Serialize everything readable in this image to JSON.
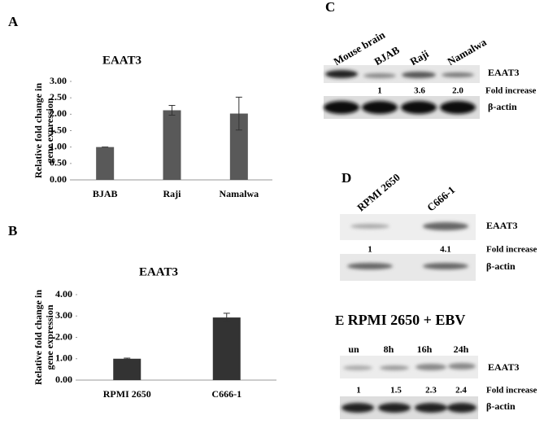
{
  "chart_data": [
    {
      "type": "bar",
      "panel": "A",
      "title": "EAAT3",
      "ylabel": [
        "Relative fold change in",
        "gene expression"
      ],
      "categories": [
        "BJAB",
        "Raji",
        "Namalwa"
      ],
      "values": [
        1.0,
        2.12,
        2.02
      ],
      "errors": [
        0.0,
        0.15,
        0.5
      ],
      "color": "#595959",
      "ylim": [
        0,
        3
      ],
      "yticks": [
        {
          "value": 0,
          "label": "0.00"
        },
        {
          "value": 0.5,
          "label": "0.50"
        },
        {
          "value": 1,
          "label": "1.00"
        },
        {
          "value": 1.5,
          "label": "1.50"
        },
        {
          "value": 2,
          "label": "2.00"
        },
        {
          "value": 2.5,
          "label": "2.50"
        },
        {
          "value": 3,
          "label": "3.00"
        }
      ]
    },
    {
      "type": "bar",
      "panel": "B",
      "title": "EAAT3",
      "ylabel": [
        "Relative fold change in",
        "gene expression"
      ],
      "categories": [
        "RPMI 2650",
        "C666-1"
      ],
      "values": [
        1.0,
        2.93
      ],
      "errors": [
        0.03,
        0.2
      ],
      "color": "#333333",
      "ylim": [
        0,
        4
      ],
      "yticks": [
        {
          "value": 0,
          "label": "0.00"
        },
        {
          "value": 1,
          "label": "1.00"
        },
        {
          "value": 2,
          "label": "2.00"
        },
        {
          "value": 3,
          "label": "3.00"
        },
        {
          "value": 4,
          "label": "4.00"
        }
      ]
    }
  ],
  "blots": {
    "C": {
      "panel": "C",
      "lanes": [
        "Mouse brain",
        "BJAB",
        "Raji",
        "Namalwa"
      ],
      "target": "EAAT3",
      "fold_label": "Fold increase",
      "fold": [
        "1",
        "3.6",
        "2.0"
      ],
      "control": "β-actin"
    },
    "D": {
      "panel": "D",
      "lanes": [
        "RPMI 2650",
        "C666-1"
      ],
      "target": "EAAT3",
      "fold_label": "Fold increase",
      "fold": [
        "1",
        "4.1"
      ],
      "control": "β-actin"
    },
    "E": {
      "panel": "E",
      "title": "RPMI 2650 + EBV",
      "lanes": [
        "un",
        "8h",
        "16h",
        "24h"
      ],
      "target": "EAAT3",
      "fold_label": "Fold increase",
      "fold": [
        "1",
        "1.5",
        "2.3",
        "2.4"
      ],
      "control": "β-actin"
    }
  }
}
